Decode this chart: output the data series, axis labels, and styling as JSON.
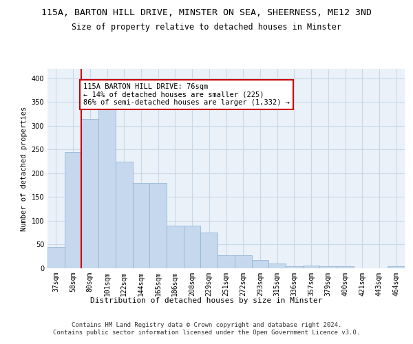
{
  "title1": "115A, BARTON HILL DRIVE, MINSTER ON SEA, SHEERNESS, ME12 3ND",
  "title2": "Size of property relative to detached houses in Minster",
  "xlabel": "Distribution of detached houses by size in Minster",
  "ylabel": "Number of detached properties",
  "footer": "Contains HM Land Registry data © Crown copyright and database right 2024.\nContains public sector information licensed under the Open Government Licence v3.0.",
  "bin_labels": [
    "37sqm",
    "58sqm",
    "80sqm",
    "101sqm",
    "122sqm",
    "144sqm",
    "165sqm",
    "186sqm",
    "208sqm",
    "229sqm",
    "251sqm",
    "272sqm",
    "293sqm",
    "315sqm",
    "336sqm",
    "357sqm",
    "379sqm",
    "400sqm",
    "421sqm",
    "443sqm",
    "464sqm"
  ],
  "bar_values": [
    45,
    245,
    315,
    335,
    225,
    180,
    180,
    90,
    90,
    75,
    27,
    27,
    17,
    10,
    5,
    6,
    5,
    4,
    0,
    0,
    4
  ],
  "highlight_bin": 2,
  "bar_color": "#c5d8ed",
  "bar_edge_color": "#8ab0d0",
  "highlight_line_color": "#cc0000",
  "annotation_text": "115A BARTON HILL DRIVE: 76sqm\n← 14% of detached houses are smaller (225)\n86% of semi-detached houses are larger (1,332) →",
  "annotation_box_color": "#ffffff",
  "annotation_box_edge": "#cc0000",
  "ylim": [
    0,
    420
  ],
  "yticks": [
    0,
    50,
    100,
    150,
    200,
    250,
    300,
    350,
    400
  ],
  "grid_color": "#c8d8e8",
  "plot_bg_color": "#eaf1f8",
  "title1_fontsize": 9.5,
  "title2_fontsize": 8.5,
  "xlabel_fontsize": 8,
  "ylabel_fontsize": 7.5,
  "tick_fontsize": 7,
  "annotation_fontsize": 7.5,
  "footer_fontsize": 6.5
}
